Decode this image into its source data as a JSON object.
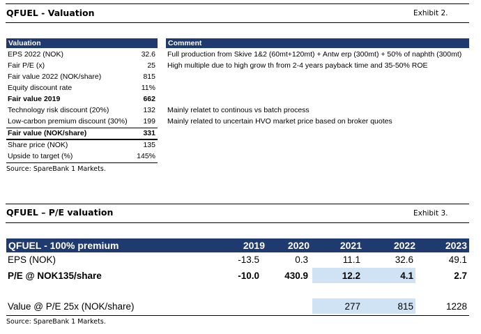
{
  "exhibit2": {
    "title": "QFUEL - Valuation",
    "label": "Exhibit 2.",
    "header_left": "Valuation",
    "header_right": "Comment",
    "rows": [
      {
        "label": "EPS 2022 (NOK)",
        "value": "32.6"
      },
      {
        "label": "Fair P/E (x)",
        "value": "25"
      },
      {
        "label": "Fair value 2022 (NOK/share)",
        "value": "815"
      },
      {
        "label": "Equity discount rate",
        "value": "11%"
      },
      {
        "label": "Fair value 2019",
        "value": "662"
      },
      {
        "label": "Technology risk discount (20%)",
        "value": "132"
      },
      {
        "label": "Low-carbon premium discount (30%)",
        "value": "199"
      },
      {
        "label": "Fair value (NOK/share)",
        "value": "331"
      },
      {
        "label": "Share price (NOK)",
        "value": "135"
      },
      {
        "label": "Upside to target (%)",
        "value": "145%"
      }
    ],
    "comments": [
      "Full production from Skive 1&2 (60mt+120mt) + Antw erp (300mt) + 50% of naphth (300mt)",
      "High multiple due to high grow th from 2-4 years payback time and 35-50% ROE",
      "Mainly relatet to continous vs batch process",
      "Mainly related to uncertain HVO market price based on broker quotes"
    ],
    "source": "Source: SpareBank 1 Markets."
  },
  "exhibit3": {
    "title": "QFUEL – P/E valuation",
    "label": "Exhibit 3.",
    "header_label": "QFUEL - 100% premium",
    "years": [
      "2019",
      "2020",
      "2021",
      "2022",
      "2023"
    ],
    "rows": [
      {
        "label": "EPS (NOK)",
        "values": [
          "-13.5",
          "0.3",
          "11.1",
          "32.6",
          "49.1"
        ]
      },
      {
        "label": "P/E @ NOK135/share",
        "values": [
          "-10.0",
          "430.9",
          "12.2",
          "4.1",
          "2.7"
        ]
      },
      {
        "label": "Value @ P/E 25x (NOK/share)",
        "values": [
          "",
          "",
          "277",
          "815",
          "1228"
        ]
      }
    ],
    "source": "Source: SpareBank 1 Markets."
  }
}
